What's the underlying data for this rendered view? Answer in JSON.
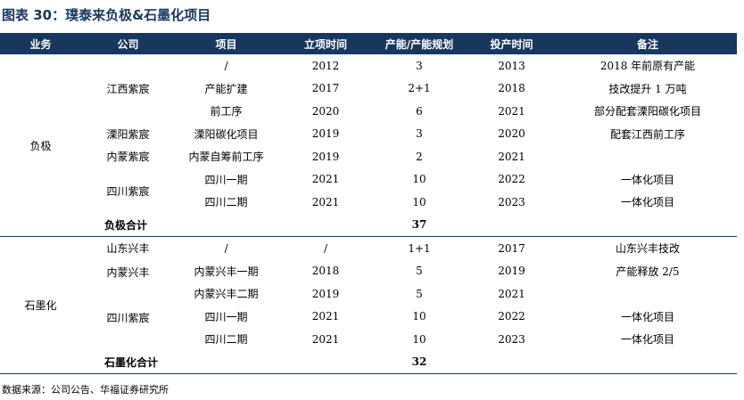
{
  "title": "图表 30：璞泰来负极&石墨化项目",
  "headers": [
    "业务",
    "公司",
    "项目",
    "立项时间",
    "产能/产能规划",
    "投产时间",
    "备注"
  ],
  "anode": {
    "business": "负极",
    "rows": [
      {
        "company": "江西紫宸",
        "project": "/",
        "start": "2012",
        "capacity": "3",
        "production": "2013",
        "note": "2018 年前原有产能"
      },
      {
        "project": "产能扩建",
        "start": "2017",
        "capacity": "2+1",
        "production": "2018",
        "note": "技改提升 1 万吨"
      },
      {
        "project": "前工序",
        "start": "2020",
        "capacity": "6",
        "production": "2021",
        "note": "部分配套溧阳碳化项目"
      },
      {
        "company": "溧阳紫宸",
        "project": "溧阳碳化项目",
        "start": "2019",
        "capacity": "3",
        "production": "2020",
        "note": "配套江西前工序"
      },
      {
        "company": "内蒙紫宸",
        "project": "内蒙自筹前工序",
        "start": "2019",
        "capacity": "2",
        "production": "2021",
        "note": ""
      },
      {
        "company": "四川紫宸",
        "project": "四川一期",
        "start": "2021",
        "capacity": "10",
        "production": "2022",
        "note": "一体化项目"
      },
      {
        "project": "四川二期",
        "start": "2021",
        "capacity": "10",
        "production": "2023",
        "note": "一体化项目"
      }
    ],
    "total_label": "负极合计",
    "total": "37"
  },
  "graphite": {
    "business": "石墨化",
    "rows": [
      {
        "company": "山东兴丰",
        "project": "/",
        "start": "/",
        "capacity": "1+1",
        "production": "2017",
        "note": "山东兴丰技改"
      },
      {
        "company": "内蒙兴丰",
        "project": "内蒙兴丰一期",
        "start": "2018",
        "capacity": "5",
        "production": "2019",
        "note": "产能释放 2/5"
      },
      {
        "project": "内蒙兴丰二期",
        "start": "2019",
        "capacity": "5",
        "production": "2021",
        "note": ""
      },
      {
        "company": "四川紫宸",
        "project": "四川一期",
        "start": "2021",
        "capacity": "10",
        "production": "2022",
        "note": "一体化项目"
      },
      {
        "project": "四川二期",
        "start": "2021",
        "capacity": "10",
        "production": "2023",
        "note": "一体化项目"
      }
    ],
    "total_label": "石墨化合计",
    "total": "32"
  },
  "source": "数据来源：公司公告、华福证券研究所"
}
